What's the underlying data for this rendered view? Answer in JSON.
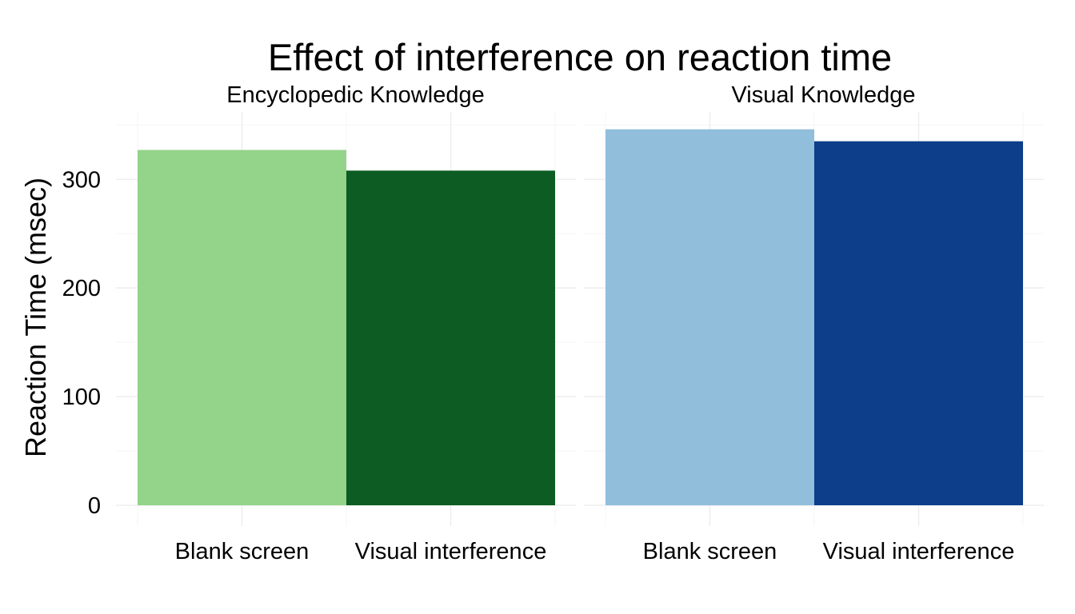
{
  "chart_data": {
    "type": "bar",
    "title": "Effect of interference on reaction time",
    "ylabel": "Reaction Time (msec)",
    "xlabel": "",
    "ylim": [
      0,
      350
    ],
    "yticks": [
      0,
      100,
      200,
      300
    ],
    "grid": true,
    "legend": "none",
    "categories": [
      "Blank screen",
      "Visual interference"
    ],
    "panels": [
      {
        "name": "Encyclopedic Knowledge",
        "values": [
          327,
          308
        ],
        "colors": [
          "#94d38a",
          "#0c5c23"
        ]
      },
      {
        "name": "Visual Knowledge",
        "values": [
          346,
          335
        ],
        "colors": [
          "#91bedb",
          "#0c3e8a"
        ]
      }
    ]
  }
}
